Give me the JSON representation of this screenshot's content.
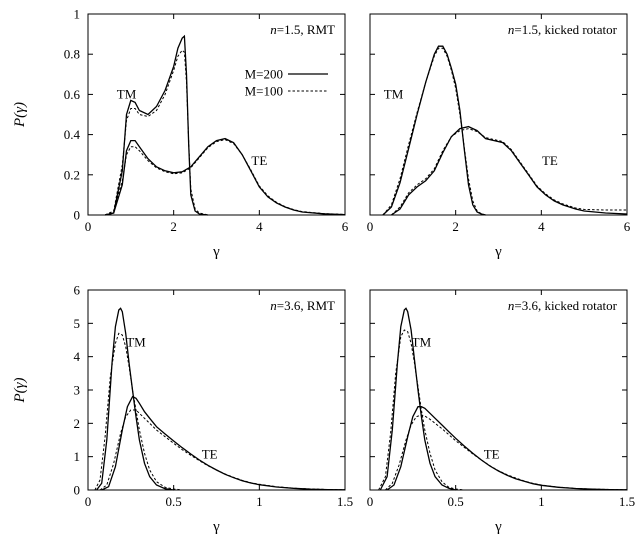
{
  "chart_data": [
    {
      "type": "line",
      "panel": "top-left",
      "title": "",
      "annotation_italic": "n",
      "annotation_text": "=1.5, RMT",
      "xlabel": "γ",
      "ylabel": "P(γ)",
      "xlim": [
        0,
        6
      ],
      "ylim": [
        0,
        1
      ],
      "xticks": [
        0,
        2,
        4,
        6
      ],
      "yticks": [
        0,
        0.2,
        0.4,
        0.6,
        0.8,
        1
      ],
      "xtick_labels": [
        "0",
        "2",
        "4",
        "6"
      ],
      "ytick_labels": [
        "0",
        "0.2",
        "0.4",
        "0.6",
        "0.8",
        "1"
      ],
      "legend_position": "top-right",
      "curve_labels": [
        {
          "text": "TM",
          "x": 0.9,
          "y": 0.58
        },
        {
          "text": "TE",
          "x": 4.0,
          "y": 0.25
        }
      ],
      "series": [
        {
          "name": "M=200",
          "group": "TM",
          "style": "solid",
          "x": [
            0.4,
            0.6,
            0.8,
            0.9,
            1.0,
            1.1,
            1.2,
            1.4,
            1.6,
            1.8,
            2.0,
            2.1,
            2.2,
            2.25,
            2.3,
            2.35,
            2.4,
            2.5,
            2.6,
            2.8
          ],
          "y": [
            0,
            0.01,
            0.22,
            0.5,
            0.57,
            0.56,
            0.52,
            0.5,
            0.54,
            0.62,
            0.74,
            0.83,
            0.88,
            0.89,
            0.7,
            0.35,
            0.1,
            0.02,
            0.005,
            0
          ]
        },
        {
          "name": "M=100",
          "group": "TM",
          "style": "dashed",
          "x": [
            0.4,
            0.6,
            0.8,
            0.9,
            1.0,
            1.1,
            1.2,
            1.4,
            1.6,
            1.8,
            2.0,
            2.1,
            2.2,
            2.25,
            2.3,
            2.35,
            2.4,
            2.5,
            2.6,
            2.8
          ],
          "y": [
            0,
            0.02,
            0.25,
            0.47,
            0.53,
            0.53,
            0.5,
            0.49,
            0.52,
            0.6,
            0.72,
            0.79,
            0.82,
            0.81,
            0.66,
            0.36,
            0.13,
            0.03,
            0.01,
            0
          ]
        },
        {
          "name": "M=200",
          "group": "TE",
          "style": "solid",
          "x": [
            0.4,
            0.6,
            0.8,
            0.9,
            1.0,
            1.1,
            1.2,
            1.4,
            1.6,
            1.8,
            2.0,
            2.2,
            2.4,
            2.6,
            2.8,
            3.0,
            3.2,
            3.4,
            3.6,
            3.8,
            4.0,
            4.2,
            4.4,
            4.6,
            4.8,
            5.0,
            5.5,
            6.0
          ],
          "y": [
            0,
            0.01,
            0.15,
            0.32,
            0.37,
            0.37,
            0.34,
            0.28,
            0.24,
            0.22,
            0.21,
            0.215,
            0.24,
            0.29,
            0.34,
            0.37,
            0.38,
            0.36,
            0.3,
            0.22,
            0.14,
            0.09,
            0.06,
            0.04,
            0.025,
            0.015,
            0.006,
            0.002
          ]
        },
        {
          "name": "M=100",
          "group": "TE",
          "style": "dashed",
          "x": [
            0.4,
            0.6,
            0.8,
            0.9,
            1.0,
            1.1,
            1.2,
            1.4,
            1.6,
            1.8,
            2.0,
            2.2,
            2.4,
            2.6,
            2.8,
            3.0,
            3.2,
            3.4,
            3.6,
            3.8,
            4.0,
            4.2,
            4.4,
            4.6,
            4.8,
            5.0,
            5.5,
            6.0
          ],
          "y": [
            0,
            0.02,
            0.17,
            0.3,
            0.34,
            0.34,
            0.32,
            0.27,
            0.235,
            0.215,
            0.205,
            0.21,
            0.235,
            0.285,
            0.335,
            0.365,
            0.375,
            0.355,
            0.3,
            0.225,
            0.145,
            0.095,
            0.063,
            0.042,
            0.027,
            0.017,
            0.007,
            0.003
          ]
        }
      ]
    },
    {
      "type": "line",
      "panel": "top-right",
      "title": "",
      "annotation_italic": "n",
      "annotation_text": "=1.5, kicked rotator",
      "xlabel": "γ",
      "ylabel": "",
      "xlim": [
        0,
        6
      ],
      "ylim": [
        0,
        1
      ],
      "xticks": [
        0,
        2,
        4,
        6
      ],
      "yticks": [
        0,
        0.2,
        0.4,
        0.6,
        0.8,
        1
      ],
      "xtick_labels": [
        "0",
        "2",
        "4",
        "6"
      ],
      "ytick_labels": [],
      "curve_labels": [
        {
          "text": "TM",
          "x": 0.55,
          "y": 0.58
        },
        {
          "text": "TE",
          "x": 4.2,
          "y": 0.25
        }
      ],
      "series": [
        {
          "name": "M=200",
          "group": "TM",
          "style": "solid",
          "x": [
            0.3,
            0.5,
            0.7,
            0.9,
            1.1,
            1.3,
            1.5,
            1.6,
            1.7,
            1.8,
            1.9,
            2.0,
            2.1,
            2.2,
            2.3,
            2.4,
            2.5,
            2.6,
            2.7
          ],
          "y": [
            0,
            0.04,
            0.16,
            0.33,
            0.5,
            0.66,
            0.8,
            0.84,
            0.84,
            0.8,
            0.73,
            0.65,
            0.52,
            0.33,
            0.15,
            0.05,
            0.015,
            0.005,
            0
          ]
        },
        {
          "name": "M=100",
          "group": "TM",
          "style": "dashed",
          "x": [
            0.3,
            0.5,
            0.7,
            0.9,
            1.1,
            1.3,
            1.5,
            1.6,
            1.7,
            1.8,
            1.9,
            2.0,
            2.1,
            2.2,
            2.3,
            2.4,
            2.5,
            2.6,
            2.7
          ],
          "y": [
            0,
            0.05,
            0.18,
            0.35,
            0.51,
            0.66,
            0.79,
            0.83,
            0.83,
            0.79,
            0.72,
            0.63,
            0.5,
            0.34,
            0.18,
            0.07,
            0.02,
            0.006,
            0
          ]
        },
        {
          "name": "M=200",
          "group": "TE",
          "style": "solid",
          "x": [
            0.5,
            0.7,
            0.9,
            1.1,
            1.3,
            1.5,
            1.7,
            1.9,
            2.1,
            2.3,
            2.5,
            2.7,
            2.9,
            3.1,
            3.3,
            3.5,
            3.7,
            3.9,
            4.1,
            4.3,
            4.5,
            4.8,
            5.0,
            5.5,
            6.0
          ],
          "y": [
            0,
            0.03,
            0.1,
            0.14,
            0.17,
            0.22,
            0.31,
            0.39,
            0.43,
            0.44,
            0.42,
            0.38,
            0.37,
            0.36,
            0.32,
            0.26,
            0.2,
            0.14,
            0.1,
            0.07,
            0.05,
            0.03,
            0.02,
            0.01,
            0.005
          ]
        },
        {
          "name": "M=100",
          "group": "TE",
          "style": "dashed",
          "x": [
            0.5,
            0.7,
            0.9,
            1.1,
            1.3,
            1.5,
            1.7,
            1.9,
            2.1,
            2.3,
            2.5,
            2.7,
            2.9,
            3.1,
            3.3,
            3.5,
            3.7,
            3.9,
            4.1,
            4.3,
            4.5,
            4.8,
            5.0,
            5.5,
            6.0
          ],
          "y": [
            0,
            0.04,
            0.11,
            0.15,
            0.18,
            0.23,
            0.32,
            0.39,
            0.42,
            0.43,
            0.415,
            0.385,
            0.375,
            0.365,
            0.325,
            0.265,
            0.205,
            0.145,
            0.105,
            0.075,
            0.055,
            0.035,
            0.028,
            0.025,
            0.025
          ]
        }
      ]
    },
    {
      "type": "line",
      "panel": "bottom-left",
      "title": "",
      "annotation_italic": "n",
      "annotation_text": "=3.6, RMT",
      "xlabel": "γ",
      "ylabel": "P(γ)",
      "xlim": [
        0,
        1.5
      ],
      "ylim": [
        0,
        6
      ],
      "xticks": [
        0,
        0.5,
        1,
        1.5
      ],
      "yticks": [
        0,
        1,
        2,
        3,
        4,
        5,
        6
      ],
      "xtick_labels": [
        "0",
        "0.5",
        "1",
        "1.5"
      ],
      "ytick_labels": [
        "0",
        "1",
        "2",
        "3",
        "4",
        "5",
        "6"
      ],
      "curve_labels": [
        {
          "text": "TM",
          "x": 0.28,
          "y": 4.3
        },
        {
          "text": "TE",
          "x": 0.71,
          "y": 0.95
        }
      ],
      "series": [
        {
          "name": "M=200",
          "group": "TM",
          "style": "solid",
          "x": [
            0.05,
            0.08,
            0.11,
            0.14,
            0.16,
            0.18,
            0.19,
            0.2,
            0.22,
            0.24,
            0.26,
            0.28,
            0.3,
            0.33,
            0.36,
            0.4,
            0.45,
            0.5
          ],
          "y": [
            0,
            0.2,
            1.5,
            3.8,
            4.9,
            5.4,
            5.45,
            5.35,
            4.7,
            3.8,
            3.0,
            2.2,
            1.5,
            0.8,
            0.4,
            0.15,
            0.04,
            0
          ]
        },
        {
          "name": "M=100",
          "group": "TM",
          "style": "dashed",
          "x": [
            0.04,
            0.07,
            0.1,
            0.13,
            0.16,
            0.18,
            0.2,
            0.22,
            0.24,
            0.26,
            0.28,
            0.3,
            0.33,
            0.36,
            0.4,
            0.45,
            0.5,
            0.55
          ],
          "y": [
            0,
            0.3,
            1.6,
            3.4,
            4.4,
            4.7,
            4.65,
            4.3,
            3.7,
            3.0,
            2.4,
            1.8,
            1.1,
            0.6,
            0.25,
            0.08,
            0.03,
            0
          ]
        },
        {
          "name": "M=200",
          "group": "TE",
          "style": "solid",
          "x": [
            0.08,
            0.12,
            0.16,
            0.2,
            0.23,
            0.26,
            0.28,
            0.3,
            0.33,
            0.36,
            0.4,
            0.45,
            0.5,
            0.55,
            0.6,
            0.65,
            0.7,
            0.75,
            0.8,
            0.85,
            0.9,
            0.95,
            1.0,
            1.1,
            1.2,
            1.3,
            1.4,
            1.5
          ],
          "y": [
            0,
            0.1,
            0.7,
            1.8,
            2.5,
            2.8,
            2.75,
            2.6,
            2.35,
            2.15,
            1.9,
            1.68,
            1.47,
            1.27,
            1.08,
            0.9,
            0.74,
            0.6,
            0.47,
            0.37,
            0.28,
            0.21,
            0.16,
            0.09,
            0.05,
            0.025,
            0.012,
            0.005
          ]
        },
        {
          "name": "M=100",
          "group": "TE",
          "style": "dashed",
          "x": [
            0.07,
            0.11,
            0.15,
            0.19,
            0.22,
            0.25,
            0.28,
            0.3,
            0.33,
            0.36,
            0.4,
            0.45,
            0.5,
            0.55,
            0.6,
            0.65,
            0.7,
            0.75,
            0.8,
            0.85,
            0.9,
            0.95,
            1.0,
            1.1,
            1.2,
            1.3,
            1.4,
            1.5
          ],
          "y": [
            0,
            0.15,
            0.8,
            1.7,
            2.2,
            2.4,
            2.4,
            2.3,
            2.15,
            2.0,
            1.8,
            1.6,
            1.4,
            1.21,
            1.04,
            0.88,
            0.73,
            0.6,
            0.48,
            0.38,
            0.29,
            0.22,
            0.17,
            0.1,
            0.055,
            0.03,
            0.015,
            0.007
          ]
        }
      ]
    },
    {
      "type": "line",
      "panel": "bottom-right",
      "title": "",
      "annotation_italic": "n",
      "annotation_text": "=3.6, kicked rotator",
      "xlabel": "γ",
      "ylabel": "",
      "xlim": [
        0,
        1.5
      ],
      "ylim": [
        0,
        6
      ],
      "xticks": [
        0,
        0.5,
        1,
        1.5
      ],
      "yticks": [
        0,
        1,
        2,
        3,
        4,
        5,
        6
      ],
      "xtick_labels": [
        "0",
        "0.5",
        "1",
        "1.5"
      ],
      "ytick_labels": [],
      "curve_labels": [
        {
          "text": "TM",
          "x": 0.3,
          "y": 4.3
        },
        {
          "text": "TE",
          "x": 0.71,
          "y": 0.95
        }
      ],
      "series": [
        {
          "name": "M=200",
          "group": "TM",
          "style": "solid",
          "x": [
            0.06,
            0.1,
            0.13,
            0.16,
            0.18,
            0.2,
            0.21,
            0.22,
            0.24,
            0.26,
            0.28,
            0.3,
            0.32,
            0.35,
            0.38,
            0.42,
            0.46,
            0.5
          ],
          "y": [
            0,
            0.4,
            1.8,
            3.8,
            4.9,
            5.4,
            5.45,
            5.35,
            4.8,
            3.9,
            3.0,
            2.2,
            1.5,
            0.8,
            0.4,
            0.15,
            0.05,
            0
          ]
        },
        {
          "name": "M=100",
          "group": "TM",
          "style": "dashed",
          "x": [
            0.05,
            0.09,
            0.12,
            0.15,
            0.18,
            0.2,
            0.22,
            0.24,
            0.26,
            0.28,
            0.3,
            0.32,
            0.35,
            0.38,
            0.42,
            0.46,
            0.5,
            0.55
          ],
          "y": [
            0,
            0.4,
            1.7,
            3.5,
            4.6,
            4.8,
            4.75,
            4.4,
            3.8,
            3.1,
            2.4,
            1.8,
            1.1,
            0.6,
            0.25,
            0.08,
            0.03,
            0
          ]
        },
        {
          "name": "M=200",
          "group": "TE",
          "style": "solid",
          "x": [
            0.1,
            0.14,
            0.18,
            0.22,
            0.25,
            0.28,
            0.3,
            0.32,
            0.35,
            0.38,
            0.42,
            0.46,
            0.5,
            0.55,
            0.6,
            0.65,
            0.7,
            0.75,
            0.8,
            0.85,
            0.9,
            0.95,
            1.0,
            1.1,
            1.2,
            1.3,
            1.4,
            1.5
          ],
          "y": [
            0,
            0.15,
            0.7,
            1.6,
            2.2,
            2.5,
            2.5,
            2.45,
            2.3,
            2.15,
            1.95,
            1.75,
            1.55,
            1.32,
            1.1,
            0.9,
            0.72,
            0.57,
            0.44,
            0.34,
            0.26,
            0.19,
            0.14,
            0.08,
            0.045,
            0.025,
            0.012,
            0.005
          ]
        },
        {
          "name": "M=100",
          "group": "TE",
          "style": "dashed",
          "x": [
            0.09,
            0.13,
            0.17,
            0.21,
            0.24,
            0.27,
            0.3,
            0.32,
            0.35,
            0.38,
            0.42,
            0.46,
            0.5,
            0.55,
            0.6,
            0.65,
            0.7,
            0.75,
            0.8,
            0.85,
            0.9,
            0.95,
            1.0,
            1.1,
            1.2,
            1.3,
            1.4,
            1.5
          ],
          "y": [
            0,
            0.2,
            0.75,
            1.5,
            1.95,
            2.2,
            2.25,
            2.22,
            2.12,
            2.0,
            1.84,
            1.66,
            1.48,
            1.28,
            1.08,
            0.9,
            0.73,
            0.58,
            0.46,
            0.36,
            0.27,
            0.2,
            0.15,
            0.085,
            0.048,
            0.027,
            0.014,
            0.006
          ]
        }
      ]
    }
  ],
  "legend": {
    "items": [
      {
        "label": "M=200",
        "style": "solid"
      },
      {
        "label": "M=100",
        "style": "dashed"
      }
    ]
  }
}
